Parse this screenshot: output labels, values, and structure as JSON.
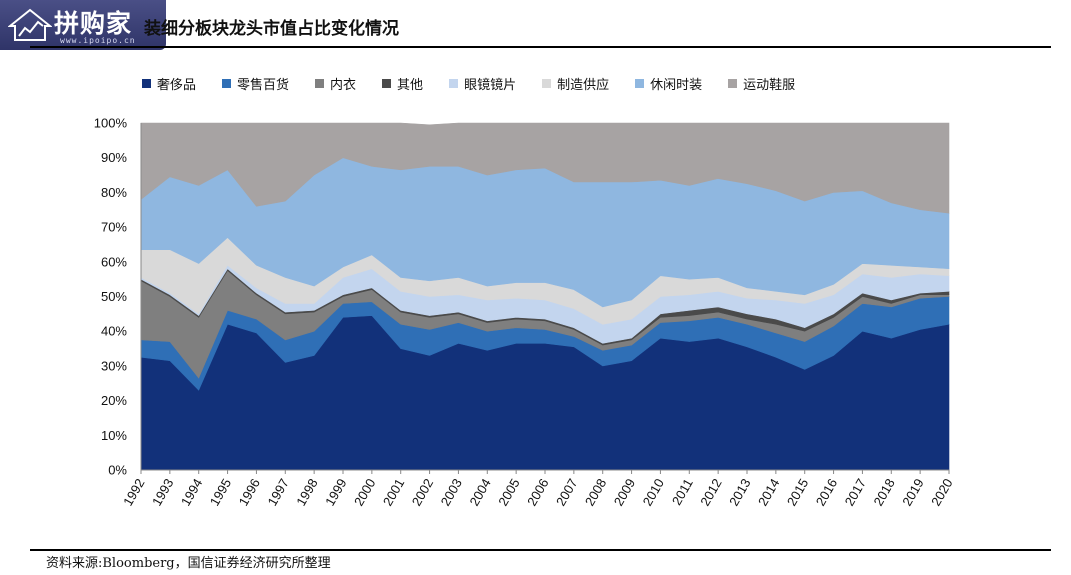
{
  "header": {
    "logo_text": "拼购家",
    "logo_url": "www.ipoipo.cn",
    "title": "装细分板块龙头市值占比变化情况"
  },
  "source": "资料来源:Bloomberg，国信证券经济研究所整理",
  "chart_data": {
    "type": "area",
    "stacked": true,
    "title": "装细分板块龙头市值占比变化情况",
    "xlabel": "",
    "ylabel": "",
    "ylim": [
      0,
      100
    ],
    "yticks": [
      "0%",
      "10%",
      "20%",
      "30%",
      "40%",
      "50%",
      "60%",
      "70%",
      "80%",
      "90%",
      "100%"
    ],
    "grid": false,
    "legend_position": "top",
    "x": [
      "1992",
      "1993",
      "1994",
      "1995",
      "1996",
      "1997",
      "1998",
      "1999",
      "2000",
      "2001",
      "2002",
      "2003",
      "2004",
      "2005",
      "2006",
      "2007",
      "2008",
      "2009",
      "2010",
      "2011",
      "2012",
      "2013",
      "2014",
      "2015",
      "2016",
      "2017",
      "2018",
      "2019",
      "2020"
    ],
    "series": [
      {
        "name": "奢侈品",
        "color": "#12317a",
        "values": [
          32.5,
          31.5,
          23,
          42,
          39.5,
          31,
          33,
          44,
          44.5,
          35,
          33,
          36.5,
          34.5,
          36.5,
          36.5,
          35.5,
          30,
          31.5,
          38,
          37,
          38,
          35.5,
          32.5,
          29,
          33,
          40,
          38,
          40.5,
          42
        ]
      },
      {
        "name": "零售百货",
        "color": "#2f6fb6",
        "values": [
          5,
          5.5,
          3.5,
          4,
          4,
          6.5,
          7,
          4,
          4,
          7,
          7.5,
          6,
          5.5,
          4.5,
          4,
          3,
          4.5,
          4.5,
          4.5,
          6,
          6,
          6.5,
          7,
          8,
          8.5,
          8,
          9,
          9,
          8
        ]
      },
      {
        "name": "内衣",
        "color": "#7f7f7f",
        "values": [
          17,
          13,
          17.5,
          11.5,
          7,
          7.5,
          5.5,
          2,
          3.5,
          3.5,
          3.5,
          2.5,
          2.5,
          2.5,
          2.5,
          2,
          1.5,
          1.5,
          1.5,
          1.5,
          1.5,
          1.5,
          2.5,
          3,
          2.5,
          2,
          1,
          1,
          0.5
        ]
      },
      {
        "name": "其他",
        "color": "#4a4a4a",
        "values": [
          0.5,
          0.5,
          0.5,
          0.5,
          0.5,
          0.5,
          0.5,
          0.5,
          0.5,
          0.5,
          0.5,
          0.5,
          0.5,
          0.5,
          0.5,
          0.5,
          0.5,
          0.5,
          1,
          1.5,
          1.5,
          1.5,
          1.5,
          1,
          1,
          1,
          1,
          0.5,
          1
        ]
      },
      {
        "name": "眼镜镜片",
        "color": "#c3d5ee",
        "values": [
          0.5,
          0.5,
          0.5,
          1,
          1.5,
          2.5,
          2,
          5,
          5.5,
          5.5,
          5.5,
          5,
          6,
          5.5,
          5.5,
          5.5,
          5.5,
          5.5,
          5,
          4.5,
          4.5,
          4.5,
          5.5,
          7,
          5.5,
          5.5,
          6.5,
          5.5,
          4.5
        ]
      },
      {
        "name": "制造供应",
        "color": "#d9d9d9",
        "values": [
          8,
          12.5,
          14.5,
          8,
          6.5,
          7.5,
          5,
          3,
          4,
          4,
          4.5,
          5,
          4,
          4.5,
          5,
          5.5,
          5,
          5.5,
          6,
          4.5,
          4,
          3,
          2.5,
          2.5,
          3,
          3,
          3.5,
          2,
          2
        ]
      },
      {
        "name": "休闲时装",
        "color": "#8fb7e0",
        "values": [
          14.5,
          21,
          22.5,
          19.5,
          17,
          22,
          32,
          31.5,
          25.5,
          31,
          33,
          32,
          32,
          32.5,
          33,
          31,
          36,
          34,
          27.5,
          27,
          28.5,
          30,
          29,
          27,
          26.5,
          21,
          18,
          16.5,
          16
        ]
      },
      {
        "name": "运动鞋服",
        "color": "#a7a3a3",
        "values": [
          22,
          15.5,
          18,
          13.5,
          24,
          22.5,
          15,
          10,
          12.5,
          13.5,
          12,
          12.5,
          15,
          13.5,
          13,
          17,
          17,
          17,
          16.5,
          18,
          16,
          17.5,
          19.5,
          22.5,
          20,
          19.5,
          23,
          25,
          26
        ]
      }
    ]
  }
}
